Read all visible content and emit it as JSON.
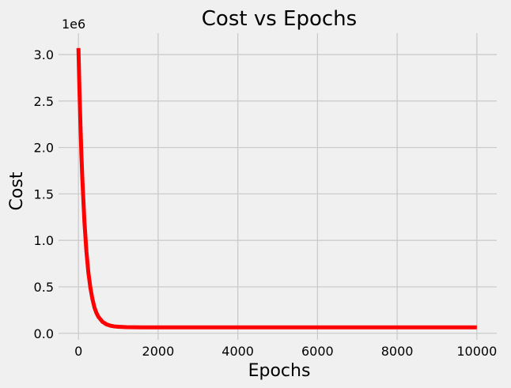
{
  "chart_data": {
    "type": "line",
    "title": "Cost vs Epochs",
    "xlabel": "Epochs",
    "ylabel": "Cost",
    "y_offset_label": "1e6",
    "xlim": [
      -500,
      10500
    ],
    "ylim": [
      -0.07,
      3.23
    ],
    "x_ticks": [
      0,
      2000,
      4000,
      6000,
      8000,
      10000
    ],
    "x_tick_labels": [
      "0",
      "2000",
      "4000",
      "6000",
      "8000",
      "10000"
    ],
    "y_ticks": [
      0.0,
      0.5,
      1.0,
      1.5,
      2.0,
      2.5,
      3.0
    ],
    "y_tick_labels": [
      "0.0",
      "0.5",
      "1.0",
      "1.5",
      "2.0",
      "2.5",
      "3.0"
    ],
    "grid": true,
    "colors": {
      "line": "#ff0000",
      "background": "#f0f0f0",
      "grid": "#cbcbcb"
    },
    "series": [
      {
        "x": [
          0,
          25,
          50,
          75,
          100,
          150,
          200,
          250,
          300,
          350,
          400,
          450,
          500,
          600,
          700,
          800,
          900,
          1000,
          1200,
          1400,
          1600,
          2000,
          3000,
          4000,
          5000,
          6000,
          7000,
          8000,
          9000,
          10000
        ],
        "y": [
          3.07,
          2.62,
          2.24,
          1.91,
          1.64,
          1.2,
          0.88,
          0.65,
          0.49,
          0.37,
          0.28,
          0.22,
          0.178,
          0.125,
          0.097,
          0.082,
          0.074,
          0.07,
          0.066,
          0.065,
          0.064,
          0.064,
          0.064,
          0.064,
          0.064,
          0.064,
          0.064,
          0.064,
          0.064,
          0.064
        ]
      }
    ]
  }
}
